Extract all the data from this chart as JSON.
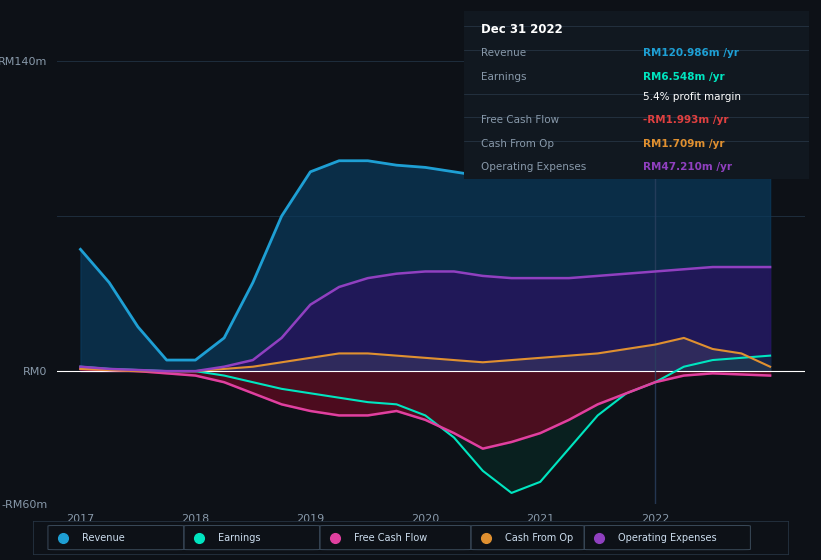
{
  "bg_color": "#0d1117",
  "plot_bg_color": "#0d1117",
  "grid_color": "#1e2d3d",
  "title": "Dec 31 2022",
  "ylim": [
    -60,
    160
  ],
  "yticks": [
    -60,
    0,
    140
  ],
  "ytick_labels": [
    "-RM60m",
    "RM0",
    "RM140m"
  ],
  "xlabel": "",
  "years": [
    2017,
    2017.25,
    2017.5,
    2017.75,
    2018,
    2018.25,
    2018.5,
    2018.75,
    2019,
    2019.25,
    2019.5,
    2019.75,
    2020,
    2020.25,
    2020.5,
    2020.75,
    2021,
    2021.25,
    2021.5,
    2021.75,
    2022,
    2022.25,
    2022.5,
    2022.75,
    2023
  ],
  "revenue": [
    55,
    40,
    20,
    5,
    5,
    15,
    40,
    70,
    90,
    95,
    95,
    93,
    92,
    90,
    88,
    88,
    90,
    95,
    100,
    108,
    115,
    120,
    125,
    128,
    130
  ],
  "earnings": [
    2,
    1,
    0.5,
    0,
    0,
    -2,
    -5,
    -8,
    -10,
    -12,
    -14,
    -15,
    -20,
    -30,
    -45,
    -55,
    -50,
    -35,
    -20,
    -10,
    -5,
    2,
    5,
    6,
    7
  ],
  "free_cash_flow": [
    1,
    0.5,
    0,
    -1,
    -2,
    -5,
    -10,
    -15,
    -18,
    -20,
    -20,
    -18,
    -22,
    -28,
    -35,
    -32,
    -28,
    -22,
    -15,
    -10,
    -5,
    -2,
    -1,
    -1.5,
    -2
  ],
  "cash_from_op": [
    1,
    0.5,
    0,
    0,
    0,
    1,
    2,
    4,
    6,
    8,
    8,
    7,
    6,
    5,
    4,
    5,
    6,
    7,
    8,
    10,
    12,
    15,
    10,
    8,
    2
  ],
  "operating_expenses": [
    2,
    1,
    0.5,
    0,
    0,
    2,
    5,
    15,
    30,
    38,
    42,
    44,
    45,
    45,
    43,
    42,
    42,
    42,
    43,
    44,
    45,
    46,
    47,
    47,
    47
  ],
  "revenue_color": "#1e9fd4",
  "earnings_color": "#00e5c0",
  "free_cash_flow_color": "#e040a0",
  "cash_from_op_color": "#e09030",
  "operating_expenses_color": "#9040c0",
  "revenue_fill_color": "#0a3a5c",
  "operating_expenses_fill_color": "#2a1060",
  "free_cash_flow_fill_color": "#5c0a20",
  "legend_labels": [
    "Revenue",
    "Earnings",
    "Free Cash Flow",
    "Cash From Op",
    "Operating Expenses"
  ],
  "legend_colors": [
    "#1e9fd4",
    "#00e5c0",
    "#e040a0",
    "#e09030",
    "#9040c0"
  ],
  "info_box": {
    "title": "Dec 31 2022",
    "rows": [
      {
        "label": "Revenue",
        "value": "RM120.986m /yr",
        "value_color": "#1e9fd4"
      },
      {
        "label": "Earnings",
        "value": "RM6.548m /yr",
        "value_color": "#00e5c0"
      },
      {
        "label": "",
        "value": "5.4% profit margin",
        "value_color": "#ffffff"
      },
      {
        "label": "Free Cash Flow",
        "value": "-RM1.993m /yr",
        "value_color": "#e04040"
      },
      {
        "label": "Cash From Op",
        "value": "RM1.709m /yr",
        "value_color": "#e09030"
      },
      {
        "label": "Operating Expenses",
        "value": "RM47.210m /yr",
        "value_color": "#9040c0"
      }
    ]
  },
  "vline_x": 2022,
  "vline_color": "#2a4060"
}
